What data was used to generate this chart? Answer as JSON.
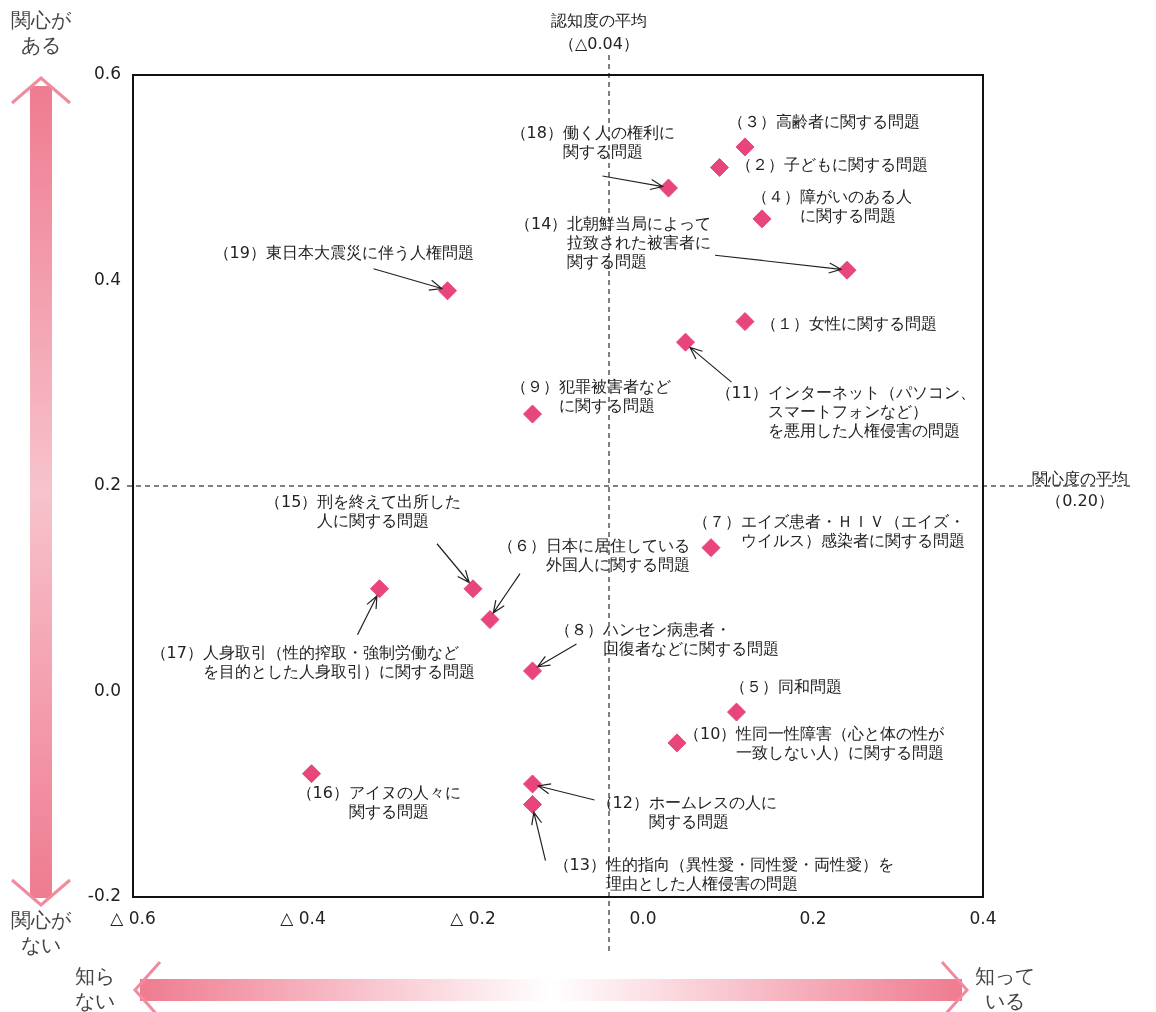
{
  "chart_data": {
    "type": "scatter",
    "xlim": [
      -0.6,
      0.4
    ],
    "ylim": [
      -0.2,
      0.6
    ],
    "xticks": [
      {
        "value": -0.6,
        "label": "△ 0.6"
      },
      {
        "value": -0.4,
        "label": "△ 0.4"
      },
      {
        "value": -0.2,
        "label": "△ 0.2"
      },
      {
        "value": 0,
        "label": "0.0"
      },
      0.2,
      0.4
    ],
    "yticks": [
      {
        "value": -0.2,
        "label": "-0.2"
      },
      {
        "value": 0,
        "label": "0.0"
      },
      0.2,
      0.4,
      0.6
    ],
    "marker": "diamond",
    "series": [
      {
        "color": "#e8457a",
        "x": [
          0.12,
          0.09,
          0.12,
          0.14,
          0.11,
          -0.18,
          0.08,
          -0.13,
          -0.13,
          0.04,
          0.05,
          -0.13,
          -0.13,
          0.24,
          -0.2,
          -0.39,
          -0.31,
          0.03,
          -0.23
        ],
        "values": [
          0.36,
          0.51,
          0.53,
          0.46,
          -0.02,
          0.07,
          0.14,
          0.02,
          0.27,
          -0.05,
          0.34,
          -0.09,
          -0.11,
          0.41,
          0.1,
          -0.08,
          0.1,
          0.49,
          0.39
        ]
      }
    ],
    "ref_lines": [
      {
        "axis": "x",
        "value": -0.04,
        "label": "認知度の平均（△0.04）",
        "line_style": "dashed",
        "color": "#000000"
      },
      {
        "axis": "y",
        "value": 0.2,
        "label": "関心度の平均（0.20）",
        "line_style": "dashed",
        "color": "#000000"
      }
    ],
    "annotations": [
      "関心がある",
      "関心がない",
      "知らない",
      "知っている",
      {
        "text": "（１）女性に関する問題",
        "x": 0.12,
        "y": 0.36
      },
      {
        "text": "（２）子どもに関する問題",
        "x": 0.09,
        "y": 0.51
      },
      {
        "text": "（３）高齢者に関する問題",
        "x": 0.12,
        "y": 0.53
      },
      {
        "text": "（４）障がいのある人に関する問題",
        "x": 0.14,
        "y": 0.46
      },
      {
        "text": "（５）同和問題",
        "x": 0.11,
        "y": -0.02
      },
      {
        "text": "（６）日本に居住している外国人に関する問題",
        "x": -0.18,
        "y": 0.07
      },
      {
        "text": "（７）エイズ患者・ＨＩＶ（エイズ・ウイルス）感染者に関する問題",
        "x": 0.08,
        "y": 0.14
      },
      {
        "text": "（８）ハンセン病患者・回復者などに関する問題",
        "x": -0.13,
        "y": 0.02
      },
      {
        "text": "（９）犯罪被害者などに関する問題",
        "x": -0.13,
        "y": 0.27
      },
      {
        "text": "（10）性同一性障害（心と体の性が一致しない人）に関する問題",
        "x": 0.04,
        "y": -0.05
      },
      {
        "text": "（11）インターネット（パソコン、スマートフォンなど）を悪用した人権侵害の問題",
        "x": 0.05,
        "y": 0.34
      },
      {
        "text": "（12）ホームレスの人に関する問題",
        "x": -0.13,
        "y": -0.09
      },
      {
        "text": "（13）性的指向（異性愛・同性愛・両性愛）を理由とした人権侵害の問題",
        "x": -0.13,
        "y": -0.11
      },
      {
        "text": "（14）北朝鮮当局によって拉致された被害者に関する問題",
        "x": 0.24,
        "y": 0.41
      },
      {
        "text": "（15）刑を終えて出所した人に関する問題",
        "x": -0.2,
        "y": 0.1
      },
      {
        "text": "（16）アイヌの人々に関する問題",
        "x": -0.39,
        "y": -0.08
      },
      {
        "text": "（17）人身取引（性的搾取・強制労働などを目的とした人身取引）に関する問題",
        "x": -0.31,
        "y": 0.1
      },
      {
        "text": "（18）働く人の権利に関する問題",
        "x": 0.03,
        "y": 0.49
      },
      {
        "text": "（19）東日本大震災に伴う人権問題",
        "x": -0.23,
        "y": 0.39
      }
    ]
  }
}
